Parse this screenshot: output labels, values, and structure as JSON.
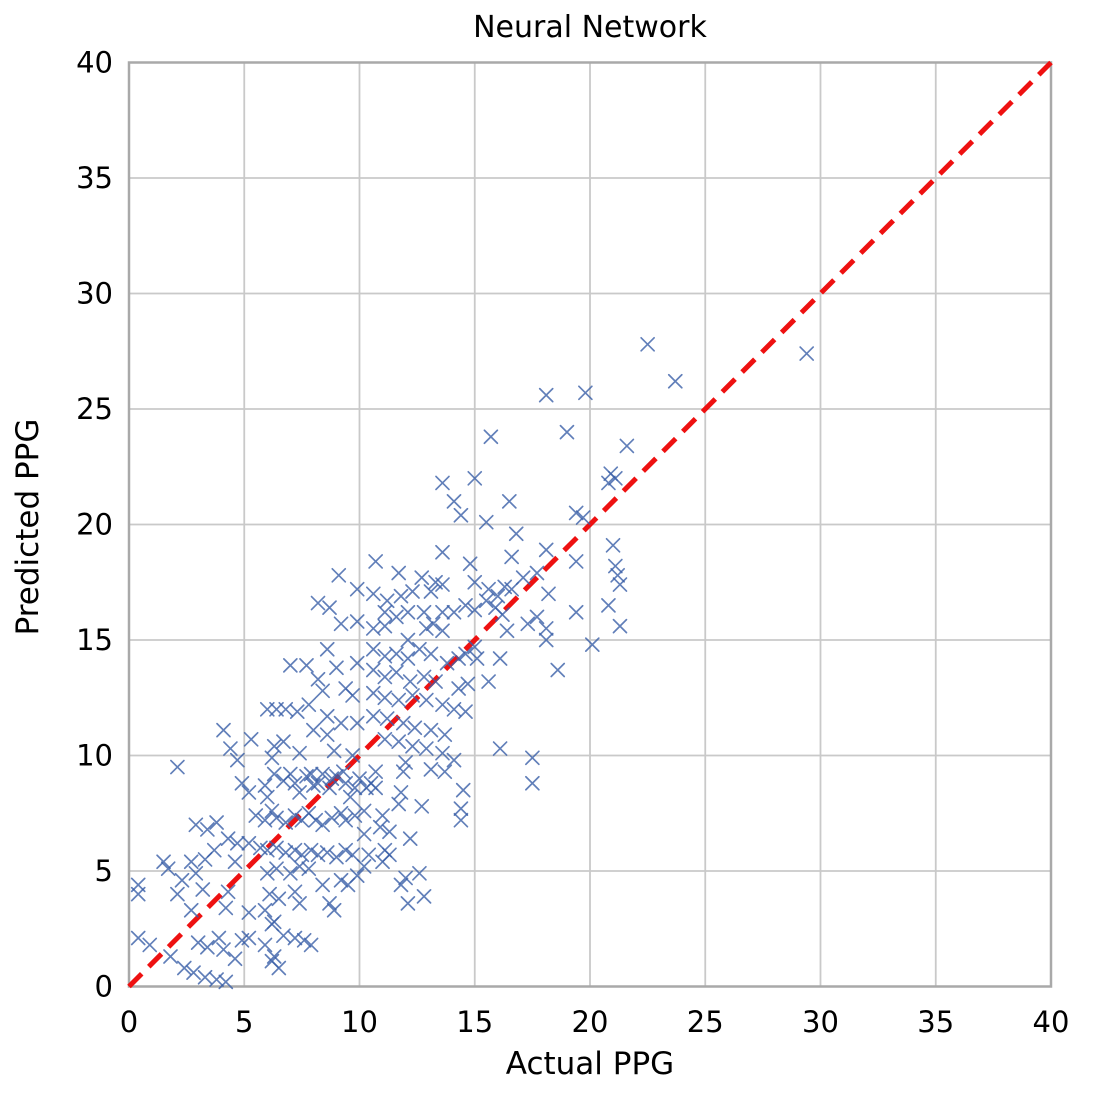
{
  "figure": {
    "title": "Neural Network"
  },
  "chart_data": {
    "type": "scatter",
    "title": "Neural Network",
    "xlabel": "Actual PPG",
    "ylabel": "Predicted PPG",
    "xlim": [
      0,
      40
    ],
    "ylim": [
      0,
      40
    ],
    "x_ticks": [
      0,
      5,
      10,
      15,
      20,
      25,
      30,
      35,
      40
    ],
    "y_ticks": [
      0,
      5,
      10,
      15,
      20,
      25,
      30,
      35,
      40
    ],
    "grid": true,
    "legend_position": "none",
    "marker_style": "x",
    "marker_color": "#3A5FA8",
    "identity_line": {
      "name": "y-equals-x",
      "style": "dashed",
      "color": "#EE1111",
      "from": [
        0,
        0
      ],
      "to": [
        40,
        40
      ]
    },
    "grid_color": "#C9C9C9",
    "spine_color": "#A9A9A9",
    "series": [
      {
        "name": "predictions",
        "points": [
          [
            0.4,
            4.4
          ],
          [
            0.4,
            4.0
          ],
          [
            1.7,
            5.1
          ],
          [
            2.3,
            4.6
          ],
          [
            2.9,
            4.9
          ],
          [
            3.2,
            4.2
          ],
          [
            2.1,
            4.0
          ],
          [
            2.7,
            3.3
          ],
          [
            4.3,
            4.1
          ],
          [
            4.2,
            3.4
          ],
          [
            5.2,
            3.2
          ],
          [
            6.0,
            4.9
          ],
          [
            6.4,
            5.1
          ],
          [
            7.0,
            4.9
          ],
          [
            7.4,
            5.2
          ],
          [
            7.8,
            5.1
          ],
          [
            6.1,
            4.0
          ],
          [
            6.5,
            3.8
          ],
          [
            7.2,
            4.1
          ],
          [
            8.4,
            4.4
          ],
          [
            9.2,
            4.6
          ],
          [
            9.5,
            4.4
          ],
          [
            9.9,
            4.8
          ],
          [
            8.7,
            3.6
          ],
          [
            8.9,
            3.3
          ],
          [
            5.9,
            3.3
          ],
          [
            6.3,
            2.8
          ],
          [
            6.2,
            2.7
          ],
          [
            7.4,
            3.6
          ],
          [
            0.4,
            2.1
          ],
          [
            0.9,
            1.8
          ],
          [
            1.8,
            1.3
          ],
          [
            3.0,
            1.9
          ],
          [
            3.4,
            1.7
          ],
          [
            3.9,
            2.1
          ],
          [
            4.1,
            1.6
          ],
          [
            4.6,
            1.2
          ],
          [
            4.9,
            2.0
          ],
          [
            5.2,
            2.1
          ],
          [
            5.9,
            1.8
          ],
          [
            6.3,
            1.3
          ],
          [
            6.7,
            2.2
          ],
          [
            7.2,
            2.1
          ],
          [
            7.6,
            2.0
          ],
          [
            7.9,
            1.8
          ],
          [
            2.4,
            0.8
          ],
          [
            2.8,
            0.6
          ],
          [
            3.3,
            0.4
          ],
          [
            3.8,
            0.3
          ],
          [
            4.2,
            0.2
          ],
          [
            6.2,
            1.1
          ],
          [
            6.5,
            0.8
          ],
          [
            1.5,
            5.4
          ],
          [
            2.7,
            5.4
          ],
          [
            3.3,
            5.5
          ],
          [
            3.7,
            5.9
          ],
          [
            4.6,
            5.4
          ],
          [
            2.1,
            9.5
          ],
          [
            2.9,
            7.0
          ],
          [
            3.4,
            6.8
          ],
          [
            3.8,
            7.1
          ],
          [
            4.3,
            6.4
          ],
          [
            4.7,
            6.2
          ],
          [
            5.2,
            6.2
          ],
          [
            4.9,
            8.8
          ],
          [
            5.2,
            8.4
          ],
          [
            5.9,
            8.7
          ],
          [
            6.0,
            8.2
          ],
          [
            6.3,
            9.2
          ],
          [
            6.7,
            8.9
          ],
          [
            7.0,
            9.2
          ],
          [
            7.2,
            8.8
          ],
          [
            7.4,
            8.4
          ],
          [
            7.7,
            9.1
          ],
          [
            7.9,
            9.2
          ],
          [
            8.0,
            8.7
          ],
          [
            8.2,
            8.8
          ],
          [
            8.4,
            9.2
          ],
          [
            8.7,
            8.6
          ],
          [
            8.8,
            9.0
          ],
          [
            9.0,
            9.1
          ],
          [
            9.3,
            9.3
          ],
          [
            9.4,
            8.8
          ],
          [
            9.6,
            8.2
          ],
          [
            9.8,
            8.6
          ],
          [
            10.0,
            9.0
          ],
          [
            5.5,
            7.4
          ],
          [
            5.9,
            7.2
          ],
          [
            6.2,
            7.6
          ],
          [
            6.4,
            7.3
          ],
          [
            6.8,
            7.1
          ],
          [
            7.2,
            7.4
          ],
          [
            7.5,
            7.2
          ],
          [
            7.8,
            7.5
          ],
          [
            8.1,
            7.2
          ],
          [
            8.4,
            7.0
          ],
          [
            8.8,
            7.3
          ],
          [
            9.2,
            7.5
          ],
          [
            9.4,
            7.2
          ],
          [
            9.8,
            7.4
          ],
          [
            5.7,
            6.0
          ],
          [
            6.0,
            5.9
          ],
          [
            6.4,
            6.0
          ],
          [
            6.8,
            5.8
          ],
          [
            7.2,
            5.9
          ],
          [
            7.5,
            5.7
          ],
          [
            7.9,
            5.9
          ],
          [
            8.2,
            5.7
          ],
          [
            8.6,
            5.8
          ],
          [
            9.0,
            5.6
          ],
          [
            9.4,
            5.9
          ],
          [
            9.7,
            5.7
          ],
          [
            10.7,
            9.3
          ],
          [
            11.9,
            9.3
          ],
          [
            13.1,
            9.4
          ],
          [
            13.7,
            9.3
          ],
          [
            10.5,
            8.8
          ],
          [
            10.3,
            8.6
          ],
          [
            10.7,
            8.6
          ],
          [
            11.8,
            8.4
          ],
          [
            14.5,
            8.5
          ],
          [
            17.5,
            8.8
          ],
          [
            11.7,
            7.9
          ],
          [
            12.7,
            7.8
          ],
          [
            14.4,
            7.7
          ],
          [
            10.2,
            7.6
          ],
          [
            11.0,
            7.4
          ],
          [
            14.4,
            7.2
          ],
          [
            10.9,
            6.9
          ],
          [
            11.3,
            6.7
          ],
          [
            10.2,
            6.6
          ],
          [
            12.2,
            6.4
          ],
          [
            11.1,
            5.9
          ],
          [
            11.3,
            5.7
          ],
          [
            10.4,
            5.7
          ],
          [
            11.0,
            5.4
          ],
          [
            10.2,
            5.2
          ],
          [
            12.0,
            4.7
          ],
          [
            12.6,
            4.9
          ],
          [
            11.8,
            4.4
          ],
          [
            12.8,
            3.9
          ],
          [
            12.1,
            3.6
          ],
          [
            10.7,
            18.4
          ],
          [
            11.7,
            17.9
          ],
          [
            12.7,
            17.7
          ],
          [
            13.3,
            17.5
          ],
          [
            12.3,
            17.1
          ],
          [
            13.1,
            17.1
          ],
          [
            13.6,
            17.4
          ],
          [
            14.8,
            18.3
          ],
          [
            15.0,
            17.5
          ],
          [
            15.6,
            17.2
          ],
          [
            16.0,
            16.9
          ],
          [
            16.3,
            17.3
          ],
          [
            17.1,
            17.7
          ],
          [
            17.7,
            17.9
          ],
          [
            18.2,
            17.0
          ],
          [
            19.4,
            16.2
          ],
          [
            10.6,
            17.0
          ],
          [
            11.2,
            16.7
          ],
          [
            11.8,
            16.9
          ],
          [
            11.1,
            16.2
          ],
          [
            11.6,
            16.0
          ],
          [
            12.1,
            16.2
          ],
          [
            12.8,
            16.2
          ],
          [
            13.2,
            15.7
          ],
          [
            13.6,
            16.2
          ],
          [
            14.1,
            16.2
          ],
          [
            14.6,
            16.5
          ],
          [
            15.0,
            16.3
          ],
          [
            15.5,
            16.7
          ],
          [
            15.9,
            16.4
          ],
          [
            16.2,
            16.1
          ],
          [
            16.6,
            17.2
          ],
          [
            17.3,
            15.7
          ],
          [
            17.7,
            16.0
          ],
          [
            18.1,
            15.5
          ],
          [
            10.6,
            15.5
          ],
          [
            11.1,
            15.6
          ],
          [
            12.1,
            15.0
          ],
          [
            12.9,
            15.5
          ],
          [
            13.6,
            15.4
          ],
          [
            15.0,
            14.7
          ],
          [
            14.6,
            14.4
          ],
          [
            16.4,
            15.4
          ],
          [
            18.1,
            15.0
          ],
          [
            20.1,
            14.8
          ],
          [
            10.6,
            14.6
          ],
          [
            11.1,
            14.3
          ],
          [
            11.6,
            14.4
          ],
          [
            12.1,
            14.2
          ],
          [
            12.6,
            14.6
          ],
          [
            13.1,
            14.4
          ],
          [
            13.8,
            14.0
          ],
          [
            14.3,
            14.2
          ],
          [
            15.1,
            14.2
          ],
          [
            16.1,
            14.2
          ],
          [
            18.6,
            13.7
          ],
          [
            10.6,
            13.7
          ],
          [
            11.1,
            13.4
          ],
          [
            11.6,
            13.6
          ],
          [
            12.2,
            13.2
          ],
          [
            12.8,
            13.4
          ],
          [
            13.3,
            13.2
          ],
          [
            14.3,
            12.9
          ],
          [
            14.7,
            13.1
          ],
          [
            15.6,
            13.2
          ],
          [
            10.6,
            12.7
          ],
          [
            11.1,
            12.5
          ],
          [
            11.7,
            12.4
          ],
          [
            12.3,
            12.6
          ],
          [
            12.9,
            12.4
          ],
          [
            13.6,
            12.2
          ],
          [
            14.1,
            12.0
          ],
          [
            14.6,
            11.9
          ],
          [
            10.6,
            11.7
          ],
          [
            11.2,
            11.6
          ],
          [
            11.9,
            11.4
          ],
          [
            12.4,
            11.2
          ],
          [
            13.1,
            11.1
          ],
          [
            13.7,
            10.9
          ],
          [
            11.1,
            10.7
          ],
          [
            11.7,
            10.6
          ],
          [
            12.3,
            10.4
          ],
          [
            12.9,
            10.3
          ],
          [
            13.6,
            10.1
          ],
          [
            16.1,
            10.3
          ],
          [
            17.5,
            9.9
          ],
          [
            12.0,
            9.7
          ],
          [
            14.1,
            9.8
          ],
          [
            13.6,
            18.8
          ],
          [
            16.6,
            18.6
          ],
          [
            18.1,
            18.9
          ],
          [
            19.4,
            18.4
          ],
          [
            9.1,
            17.8
          ],
          [
            9.9,
            17.2
          ],
          [
            8.2,
            16.6
          ],
          [
            8.7,
            16.4
          ],
          [
            9.2,
            15.7
          ],
          [
            9.9,
            15.8
          ],
          [
            8.6,
            14.6
          ],
          [
            7.0,
            13.9
          ],
          [
            7.7,
            13.9
          ],
          [
            9.0,
            13.8
          ],
          [
            9.9,
            14.0
          ],
          [
            8.2,
            13.3
          ],
          [
            9.4,
            12.9
          ],
          [
            8.4,
            12.8
          ],
          [
            9.7,
            12.6
          ],
          [
            6.0,
            12.0
          ],
          [
            6.4,
            12.0
          ],
          [
            6.8,
            12.0
          ],
          [
            7.3,
            11.9
          ],
          [
            7.8,
            12.2
          ],
          [
            8.6,
            11.7
          ],
          [
            9.2,
            11.4
          ],
          [
            9.9,
            11.4
          ],
          [
            4.1,
            11.1
          ],
          [
            5.3,
            10.7
          ],
          [
            8.0,
            11.1
          ],
          [
            8.6,
            10.9
          ],
          [
            4.4,
            10.3
          ],
          [
            6.3,
            10.4
          ],
          [
            6.7,
            10.6
          ],
          [
            7.4,
            10.1
          ],
          [
            8.9,
            10.2
          ],
          [
            9.7,
            10.0
          ],
          [
            4.7,
            9.8
          ],
          [
            6.2,
            9.9
          ],
          [
            18.1,
            25.6
          ],
          [
            19.8,
            25.7
          ],
          [
            15.7,
            23.8
          ],
          [
            19.0,
            24.0
          ],
          [
            13.6,
            21.8
          ],
          [
            15.0,
            22.0
          ],
          [
            14.1,
            21.0
          ],
          [
            14.4,
            20.4
          ],
          [
            16.5,
            21.0
          ],
          [
            15.5,
            20.1
          ],
          [
            19.4,
            20.5
          ],
          [
            19.7,
            20.3
          ],
          [
            16.8,
            19.6
          ],
          [
            22.5,
            27.8
          ],
          [
            29.4,
            27.4
          ],
          [
            23.7,
            26.2
          ],
          [
            21.6,
            23.4
          ],
          [
            20.9,
            22.2
          ],
          [
            21.1,
            22.0
          ],
          [
            20.8,
            21.8
          ],
          [
            21.0,
            19.1
          ],
          [
            21.1,
            18.2
          ],
          [
            21.2,
            17.8
          ],
          [
            21.3,
            17.4
          ],
          [
            20.8,
            16.5
          ],
          [
            21.3,
            15.6
          ]
        ]
      }
    ]
  }
}
